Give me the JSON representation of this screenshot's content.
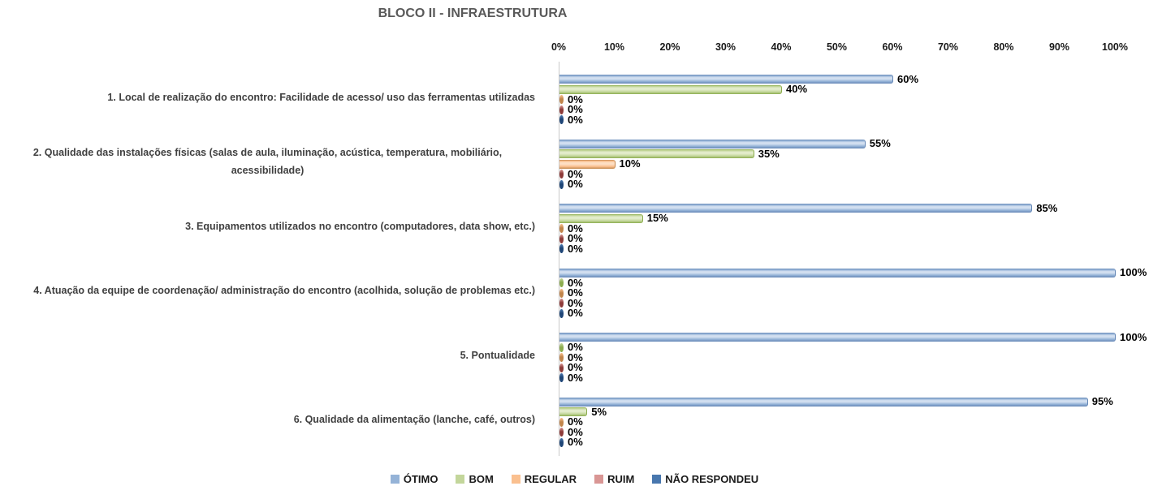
{
  "title": "BLOCO II - INFRAESTRUTURA",
  "chart_data": {
    "type": "bar",
    "orientation": "horizontal",
    "title": "BLOCO II - INFRAESTRUTURA",
    "categories": [
      "1. Local de realização do encontro: Facilidade de acesso/ uso das ferramentas utilizadas",
      "2. Qualidade das instalações físicas (salas de aula, iluminação, acústica, temperatura, mobiliário, acessibilidade)",
      "3. Equipamentos utilizados no encontro (computadores, data show, etc.)",
      "4. Atuação da equipe de coordenação/ administração do encontro (acolhida, solução de problemas etc.)",
      "5. Pontualidade",
      "6. Qualidade da alimentação (lanche, café, outros)"
    ],
    "series": [
      {
        "name": "ÓTIMO",
        "color": "#95B3D7",
        "color_light": "#D2DFF0",
        "color_dark": "#6486B5",
        "values": [
          60,
          55,
          85,
          100,
          100,
          95
        ]
      },
      {
        "name": "BOM",
        "color": "#C3D69B",
        "color_light": "#E3ECCB",
        "color_dark": "#8CAC4E",
        "values": [
          40,
          35,
          15,
          0,
          0,
          5
        ]
      },
      {
        "name": "REGULAR",
        "color": "#FAC08F",
        "color_light": "#FDDFC4",
        "color_dark": "#C1854B",
        "values": [
          0,
          10,
          0,
          0,
          0,
          0
        ]
      },
      {
        "name": "RUIM",
        "color": "#D99694",
        "color_light": "#E9C2C1",
        "color_dark": "#8E3B39",
        "values": [
          0,
          0,
          0,
          0,
          0,
          0
        ]
      },
      {
        "name": "NÃO RESPONDEU",
        "color": "#4877AE",
        "color_light": "#82A3CA",
        "color_dark": "#1F4677",
        "values": [
          0,
          0,
          0,
          0,
          0,
          0
        ]
      }
    ],
    "x_ticks": [
      "0%",
      "10%",
      "20%",
      "30%",
      "40%",
      "50%",
      "60%",
      "70%",
      "80%",
      "90%",
      "100%"
    ],
    "xlim": [
      0,
      100
    ],
    "value_labels": "shown at end of every bar as percent",
    "legend_position": "bottom",
    "grid": false
  }
}
